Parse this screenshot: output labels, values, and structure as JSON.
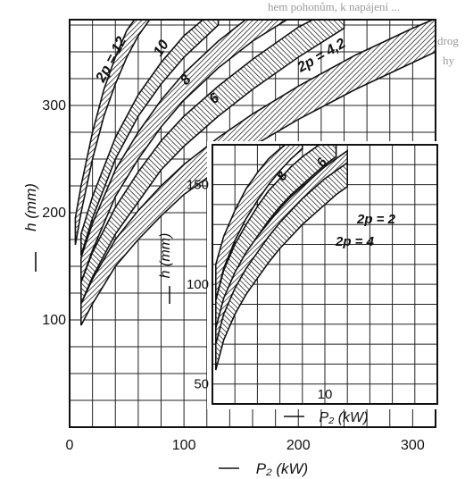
{
  "page_bleed": {
    "top_line": "hem pohonům, k napájení ...",
    "side_lines": [
      "drog",
      "hy"
    ]
  },
  "chart_data": [
    {
      "type": "area",
      "title": "",
      "xlabel": "P₂ (kW)",
      "ylabel": "h (mm)",
      "xlim": [
        0,
        320
      ],
      "ylim": [
        0,
        380
      ],
      "x_ticks": [
        0,
        100,
        200,
        300
      ],
      "y_ticks": [
        100,
        200,
        300
      ],
      "grid": true,
      "grid_step": {
        "x": 20,
        "y": 25
      },
      "series": [
        {
          "name": "2p = 12",
          "x": [
            5,
            10,
            20,
            30,
            40,
            50,
            60,
            70
          ],
          "low": [
            170,
            200,
            250,
            290,
            320,
            345,
            365,
            380
          ],
          "high": [
            195,
            225,
            275,
            315,
            345,
            370,
            385,
            395
          ]
        },
        {
          "name": "10",
          "x": [
            10,
            20,
            40,
            60,
            80,
            100,
            130
          ],
          "low": [
            160,
            195,
            250,
            290,
            320,
            345,
            375
          ],
          "high": [
            180,
            215,
            270,
            310,
            340,
            365,
            392
          ]
        },
        {
          "name": "8",
          "x": [
            10,
            20,
            40,
            60,
            80,
            100,
            130,
            160,
            190
          ],
          "low": [
            135,
            165,
            215,
            250,
            280,
            305,
            335,
            360,
            380
          ],
          "high": [
            158,
            190,
            240,
            275,
            305,
            330,
            360,
            385,
            395
          ]
        },
        {
          "name": "6",
          "x": [
            10,
            20,
            40,
            60,
            80,
            100,
            130,
            160,
            200,
            240
          ],
          "low": [
            115,
            140,
            180,
            210,
            240,
            262,
            290,
            315,
            345,
            372
          ],
          "high": [
            135,
            163,
            205,
            238,
            267,
            290,
            318,
            343,
            373,
            395
          ]
        },
        {
          "name": "2p = 4,2",
          "x": [
            10,
            20,
            40,
            60,
            80,
            100,
            130,
            160,
            200,
            250,
            300,
            340
          ],
          "low": [
            95,
            115,
            150,
            175,
            197,
            217,
            240,
            262,
            287,
            315,
            340,
            360
          ],
          "high": [
            115,
            138,
            175,
            202,
            225,
            245,
            270,
            292,
            318,
            347,
            372,
            390
          ]
        }
      ]
    },
    {
      "type": "area",
      "title": "",
      "xlabel": "P₂ (kW)",
      "ylabel": "h (mm)",
      "xlim": [
        0,
        20
      ],
      "ylim": [
        40,
        170
      ],
      "x_ticks": [
        10
      ],
      "y_ticks": [
        50,
        100,
        150
      ],
      "grid": true,
      "grid_step": {
        "x": 2,
        "y": 10
      },
      "series": [
        {
          "name": "8",
          "x": [
            0.3,
            1,
            2,
            3,
            4,
            5,
            6,
            7,
            8
          ],
          "low": [
            92,
            108,
            122,
            133,
            142,
            150,
            157,
            163,
            168
          ],
          "high": [
            110,
            124,
            137,
            148,
            156,
            163,
            168,
            172,
            175
          ]
        },
        {
          "name": "6",
          "x": [
            0.3,
            1,
            2,
            3,
            4,
            5,
            6,
            7,
            8,
            9,
            10,
            11
          ],
          "low": [
            75,
            92,
            105,
            115,
            124,
            132,
            139,
            145,
            150,
            155,
            160,
            164
          ],
          "high": [
            92,
            107,
            120,
            130,
            139,
            147,
            153,
            159,
            164,
            168,
            172,
            175
          ]
        },
        {
          "name": "2p = 2",
          "x": [
            0.3,
            1,
            2,
            3,
            4,
            5,
            6,
            7,
            8,
            9,
            10,
            11,
            12
          ],
          "low": [
            62,
            77,
            90,
            100,
            108,
            116,
            123,
            129,
            135,
            140,
            145,
            150,
            154
          ],
          "high": [
            78,
            93,
            106,
            116,
            124,
            131,
            138,
            144,
            149,
            154,
            159,
            163,
            167
          ]
        },
        {
          "name": "2p = 4",
          "x": [
            0.3,
            1,
            2,
            3,
            4,
            5,
            6,
            7,
            8,
            9,
            10,
            11,
            12
          ],
          "low": [
            57,
            72,
            85,
            95,
            103,
            111,
            118,
            124,
            130,
            135,
            140,
            145,
            149
          ],
          "high": [
            70,
            85,
            98,
            108,
            116,
            124,
            131,
            137,
            143,
            148,
            153,
            157,
            161
          ]
        }
      ]
    }
  ]
}
